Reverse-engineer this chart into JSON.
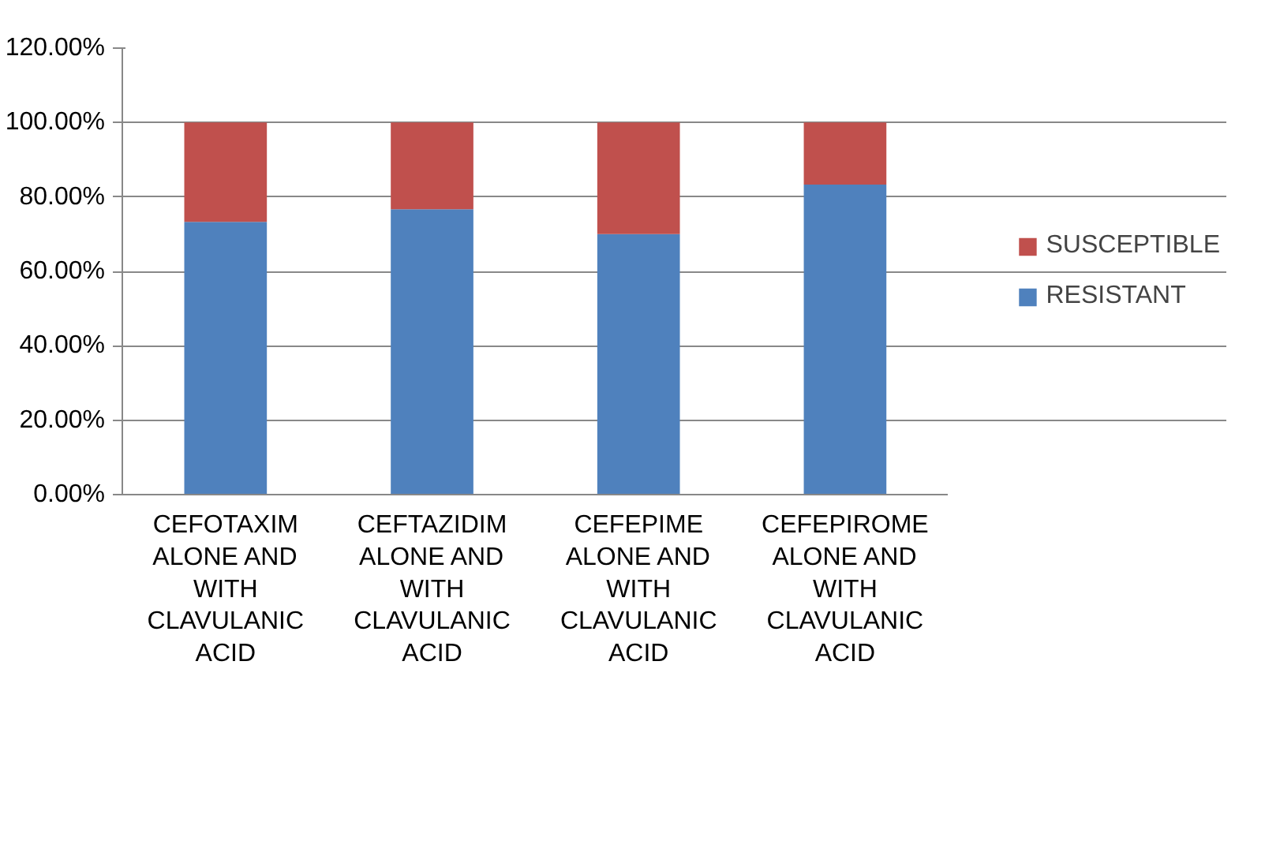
{
  "chart_data": {
    "type": "bar",
    "stacked": true,
    "categories": [
      "CEFOTAXIM ALONE AND WITH CLAVULANIC ACID",
      "CEFTAZIDIM ALONE AND WITH CLAVULANIC ACID",
      "CEFEPIME ALONE AND WITH CLAVULANIC ACID",
      "CEFEPIROME ALONE AND WITH CLAVULANIC ACID"
    ],
    "series": [
      {
        "name": "RESISTANT",
        "color": "#4f81bd",
        "values": [
          73.3,
          76.7,
          70.0,
          83.3
        ]
      },
      {
        "name": "SUSCEPTIBLE",
        "color": "#c0504d",
        "values": [
          26.7,
          23.3,
          30.0,
          16.7
        ]
      }
    ],
    "ylim": [
      0,
      120
    ],
    "yticks": [
      {
        "value": 0,
        "label": "0.00%"
      },
      {
        "value": 20,
        "label": "20.00%"
      },
      {
        "value": 40,
        "label": "40.00%"
      },
      {
        "value": 60,
        "label": "60.00%"
      },
      {
        "value": 80,
        "label": "80.00%"
      },
      {
        "value": 100,
        "label": "100.00%"
      },
      {
        "value": 120,
        "label": "120.00%"
      }
    ],
    "grid": "y",
    "legend": "right"
  }
}
